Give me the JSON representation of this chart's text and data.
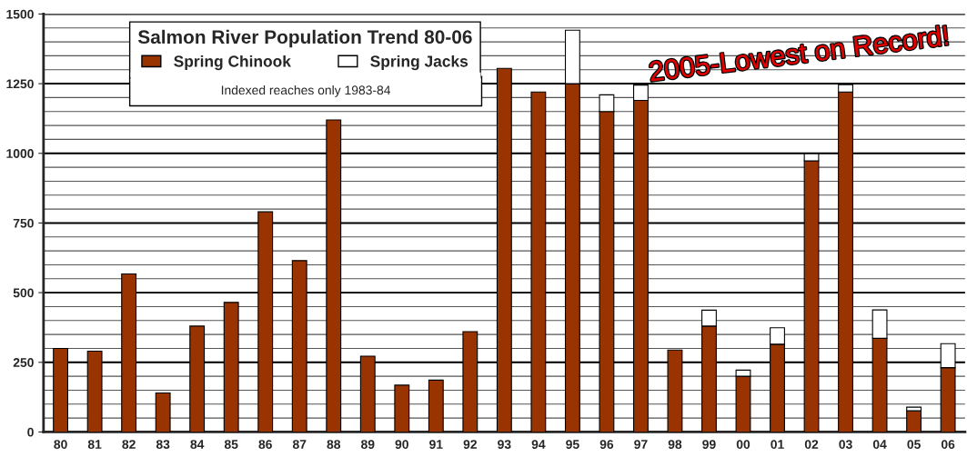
{
  "chart_data": {
    "type": "bar",
    "title": "Salmon River Population Trend 80-06",
    "stacked": true,
    "categories": [
      "80",
      "81",
      "82",
      "83",
      "84",
      "85",
      "86",
      "87",
      "88",
      "89",
      "90",
      "91",
      "92",
      "93",
      "94",
      "95",
      "96",
      "97",
      "98",
      "99",
      "00",
      "01",
      "02",
      "03",
      "04",
      "05",
      "06"
    ],
    "series": [
      {
        "name": "Spring Chinook",
        "color": "#993300",
        "values": [
          300,
          290,
          567,
          140,
          380,
          465,
          790,
          615,
          1120,
          272,
          168,
          186,
          360,
          1305,
          1220,
          1250,
          1150,
          1190,
          294,
          380,
          200,
          315,
          973,
          1220,
          336,
          76,
          231
        ]
      },
      {
        "name": "Spring Jacks",
        "color": "#ffffff",
        "values": [
          null,
          null,
          null,
          null,
          null,
          null,
          null,
          null,
          null,
          null,
          null,
          null,
          null,
          null,
          null,
          192,
          60,
          55,
          null,
          57,
          22,
          59,
          26,
          26,
          102,
          13,
          86
        ]
      }
    ],
    "ylim": [
      0,
      1500
    ],
    "yticks": [
      0,
      250,
      500,
      750,
      1000,
      1250,
      1500
    ],
    "grid": "y",
    "legend": "top left",
    "annotations": [
      "Indexed reaches only 1983-84",
      "2005-Lowest on Record!"
    ]
  }
}
